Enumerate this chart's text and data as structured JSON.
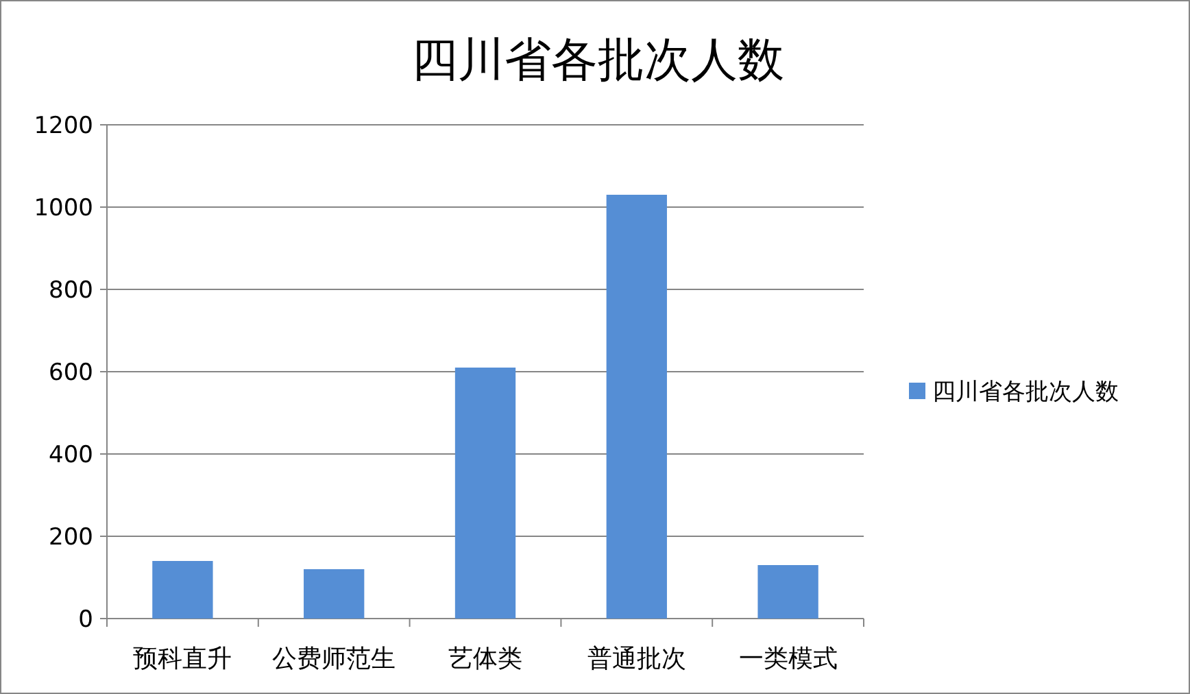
{
  "chart_data": {
    "type": "bar",
    "title": "四川省各批次人数",
    "categories": [
      "预科直升",
      "公费师范生",
      "艺体类",
      "普通批次",
      "一类模式"
    ],
    "series": [
      {
        "name": "四川省各批次人数",
        "color": "#558ed5",
        "values": [
          140,
          120,
          610,
          1030,
          130
        ]
      }
    ],
    "ylim": [
      0,
      1200
    ],
    "yticks": [
      0,
      200,
      400,
      600,
      800,
      1000,
      1200
    ],
    "grid": "y",
    "legend": "right"
  }
}
